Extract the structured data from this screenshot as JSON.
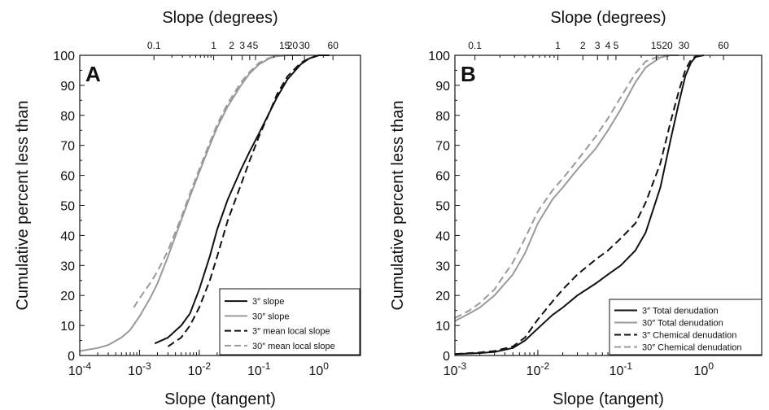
{
  "colors": {
    "black": "#111111",
    "gray": "#9a9a9a"
  },
  "chart_data": [
    {
      "type": "line",
      "panel_label": "A",
      "xlabel": "Slope (tangent)",
      "top_xlabel": "Slope (degrees)",
      "ylabel": "Cumulative percent less than",
      "x_scale": "log",
      "xlim": [
        0.0001,
        5
      ],
      "ylim": [
        0,
        100
      ],
      "x_ticks": [
        {
          "value": 0.0001,
          "base": "10",
          "exp": "-4"
        },
        {
          "value": 0.001,
          "base": "10",
          "exp": "-3"
        },
        {
          "value": 0.01,
          "base": "10",
          "exp": "-2"
        },
        {
          "value": 0.1,
          "base": "10",
          "exp": "-1"
        },
        {
          "value": 1,
          "base": "10",
          "exp": "0"
        }
      ],
      "y_ticks": [
        "0",
        "10",
        "20",
        "30",
        "40",
        "50",
        "60",
        "70",
        "80",
        "90",
        "100"
      ],
      "top_ticks": [
        {
          "label": "0.1",
          "deg": 0.1
        },
        {
          "label": "1",
          "deg": 1
        },
        {
          "label": "2",
          "deg": 2
        },
        {
          "label": "3",
          "deg": 3
        },
        {
          "label": "4",
          "deg": 4
        },
        {
          "label": "5",
          "deg": 5
        },
        {
          "label": "15",
          "deg": 15
        },
        {
          "label": "20",
          "deg": 20
        },
        {
          "label": "30",
          "deg": 30
        },
        {
          "label": "60",
          "deg": 60
        }
      ],
      "legend_position": "bottom-right",
      "series": [
        {
          "name": "3″ slope",
          "color": "#111111",
          "dash": "solid",
          "x": [
            0.0018,
            0.003,
            0.005,
            0.007,
            0.01,
            0.015,
            0.02,
            0.03,
            0.05,
            0.07,
            0.1,
            0.15,
            0.2,
            0.3,
            0.5,
            0.7,
            1.0,
            1.5
          ],
          "y": [
            4,
            6,
            10,
            14,
            22,
            33,
            42,
            52,
            62,
            68,
            74,
            81,
            86,
            92,
            97,
            99,
            100,
            100
          ]
        },
        {
          "name": "30″ slope",
          "color": "#9a9a9a",
          "dash": "solid",
          "x": [
            0.0001,
            0.0002,
            0.0003,
            0.0005,
            0.0007,
            0.001,
            0.0015,
            0.002,
            0.003,
            0.005,
            0.007,
            0.01,
            0.015,
            0.02,
            0.03,
            0.05,
            0.07,
            0.1,
            0.15,
            0.2,
            0.3,
            0.5
          ],
          "y": [
            1.5,
            2.5,
            3.5,
            6,
            8.5,
            13,
            19,
            24,
            33,
            45,
            53,
            61,
            70,
            76,
            83,
            90,
            94,
            97,
            99,
            99.7,
            100,
            100
          ]
        },
        {
          "name": "3″ mean local slope",
          "color": "#111111",
          "dash": "dashed",
          "x": [
            0.003,
            0.005,
            0.007,
            0.01,
            0.015,
            0.02,
            0.03,
            0.05,
            0.07,
            0.1,
            0.15,
            0.2,
            0.3,
            0.5,
            0.7,
            1.0,
            1.5
          ],
          "y": [
            3,
            6,
            10,
            16,
            25,
            33,
            45,
            57,
            65,
            73,
            81,
            87,
            93,
            97.5,
            99,
            100,
            100
          ]
        },
        {
          "name": "30″ mean local slope",
          "color": "#9a9a9a",
          "dash": "dashed",
          "x": [
            0.0008,
            0.001,
            0.0015,
            0.002,
            0.003,
            0.005,
            0.007,
            0.01,
            0.015,
            0.02,
            0.03,
            0.05,
            0.07,
            0.1,
            0.15,
            0.2,
            0.3,
            0.5
          ],
          "y": [
            16,
            19,
            24,
            28,
            35,
            46,
            54,
            62,
            71,
            77,
            84,
            91,
            94.5,
            97.5,
            99.2,
            99.8,
            100,
            100
          ]
        }
      ]
    },
    {
      "type": "line",
      "panel_label": "B",
      "xlabel": "Slope (tangent)",
      "top_xlabel": "Slope (degrees)",
      "ylabel": "Cumulative percent less than",
      "x_scale": "log",
      "xlim": [
        0.001,
        5
      ],
      "ylim": [
        0,
        100
      ],
      "x_ticks": [
        {
          "value": 0.001,
          "base": "10",
          "exp": "-3"
        },
        {
          "value": 0.01,
          "base": "10",
          "exp": "-2"
        },
        {
          "value": 0.1,
          "base": "10",
          "exp": "-1"
        },
        {
          "value": 1,
          "base": "10",
          "exp": "0"
        }
      ],
      "y_ticks": [
        "0",
        "10",
        "20",
        "30",
        "40",
        "50",
        "60",
        "70",
        "80",
        "90",
        "100"
      ],
      "top_ticks": [
        {
          "label": "0.1",
          "deg": 0.1
        },
        {
          "label": "1",
          "deg": 1
        },
        {
          "label": "2",
          "deg": 2
        },
        {
          "label": "3",
          "deg": 3
        },
        {
          "label": "4",
          "deg": 4
        },
        {
          "label": "5",
          "deg": 5
        },
        {
          "label": "15",
          "deg": 15
        },
        {
          "label": "20",
          "deg": 20
        },
        {
          "label": "30",
          "deg": 30
        },
        {
          "label": "60",
          "deg": 60
        }
      ],
      "legend_position": "bottom-right",
      "series": [
        {
          "name": "3″ Total denudation",
          "color": "#111111",
          "dash": "solid",
          "x": [
            0.001,
            0.002,
            0.003,
            0.005,
            0.007,
            0.01,
            0.015,
            0.02,
            0.03,
            0.05,
            0.07,
            0.1,
            0.15,
            0.2,
            0.3,
            0.4,
            0.5,
            0.6,
            0.7,
            0.8,
            1.0
          ],
          "y": [
            0.5,
            0.8,
            1.2,
            2.5,
            5,
            9,
            13.5,
            16,
            20,
            24,
            27,
            30,
            35,
            41,
            56,
            72,
            84,
            93,
            97.5,
            99.5,
            100
          ]
        },
        {
          "name": "30″ Total denudation",
          "color": "#9a9a9a",
          "dash": "solid",
          "x": [
            0.001,
            0.0015,
            0.002,
            0.003,
            0.005,
            0.007,
            0.01,
            0.015,
            0.02,
            0.03,
            0.05,
            0.07,
            0.1,
            0.15,
            0.2,
            0.3,
            0.4,
            0.5
          ],
          "y": [
            11.5,
            14,
            16,
            20,
            27,
            34,
            44,
            52,
            56,
            62,
            69,
            75,
            82,
            91,
            96,
            99.3,
            100,
            100
          ]
        },
        {
          "name": "3″ Chemical denudation",
          "color": "#111111",
          "dash": "dashed",
          "x": [
            0.001,
            0.002,
            0.003,
            0.005,
            0.007,
            0.01,
            0.015,
            0.02,
            0.03,
            0.05,
            0.07,
            0.1,
            0.15,
            0.2,
            0.3,
            0.4,
            0.5,
            0.6,
            0.7,
            0.8,
            1.0
          ],
          "y": [
            0.5,
            1,
            1.5,
            3,
            6,
            12,
            18,
            22,
            27,
            32,
            35,
            39,
            44,
            51,
            64,
            78,
            88,
            95,
            98.5,
            99.7,
            100
          ]
        },
        {
          "name": "30″ Chemical denudation",
          "color": "#9a9a9a",
          "dash": "dashed",
          "x": [
            0.001,
            0.0015,
            0.002,
            0.003,
            0.005,
            0.007,
            0.01,
            0.015,
            0.02,
            0.03,
            0.05,
            0.07,
            0.1,
            0.15,
            0.2,
            0.3,
            0.4
          ],
          "y": [
            12.5,
            15,
            17.5,
            22,
            31,
            39,
            48,
            55,
            59,
            65,
            73,
            79,
            86,
            94,
            98,
            99.8,
            100
          ]
        }
      ]
    }
  ]
}
